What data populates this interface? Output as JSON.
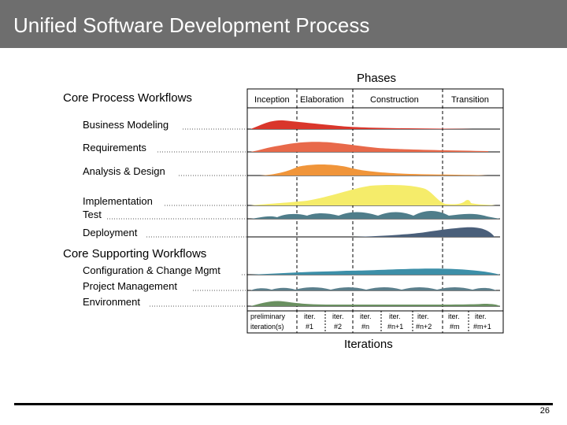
{
  "slide": {
    "title": "Unified Software Development Process",
    "page_number": "26"
  },
  "diagram": {
    "phases_label": "Phases",
    "iterations_label": "Iterations",
    "core_process_heading": "Core Process Workflows",
    "core_supporting_heading": "Core Supporting Workflows",
    "phases": [
      "Inception",
      "Elaboration",
      "Construction",
      "Transition"
    ],
    "workflows": [
      "Business Modeling",
      "Requirements",
      "Analysis & Design",
      "Implementation",
      "Test",
      "Deployment",
      "Configuration & Change Mgmt",
      "Project Management",
      "Environment"
    ],
    "iterations": [
      {
        "line1": "preliminary",
        "line2": "iteration(s)"
      },
      {
        "line1": "iter.",
        "line2": "#1"
      },
      {
        "line1": "iter.",
        "line2": "#2"
      },
      {
        "line1": "iter.",
        "line2": "#n"
      },
      {
        "line1": "iter.",
        "line2": "#n+1"
      },
      {
        "line1": "iter.",
        "line2": "#n+2"
      },
      {
        "line1": "iter.",
        "line2": "#m"
      },
      {
        "line1": "iter.",
        "line2": "#m+1"
      }
    ],
    "colors": {
      "business_modeling": "#d9362b",
      "requirements": "#e8694a",
      "analysis_design": "#f0953a",
      "implementation": "#f5ec6a",
      "test": "#4f7d8a",
      "deployment": "#4a5f7a",
      "config_change": "#3d8fa8",
      "project_mgmt": "#5b7f8c",
      "environment": "#6a9060"
    }
  }
}
